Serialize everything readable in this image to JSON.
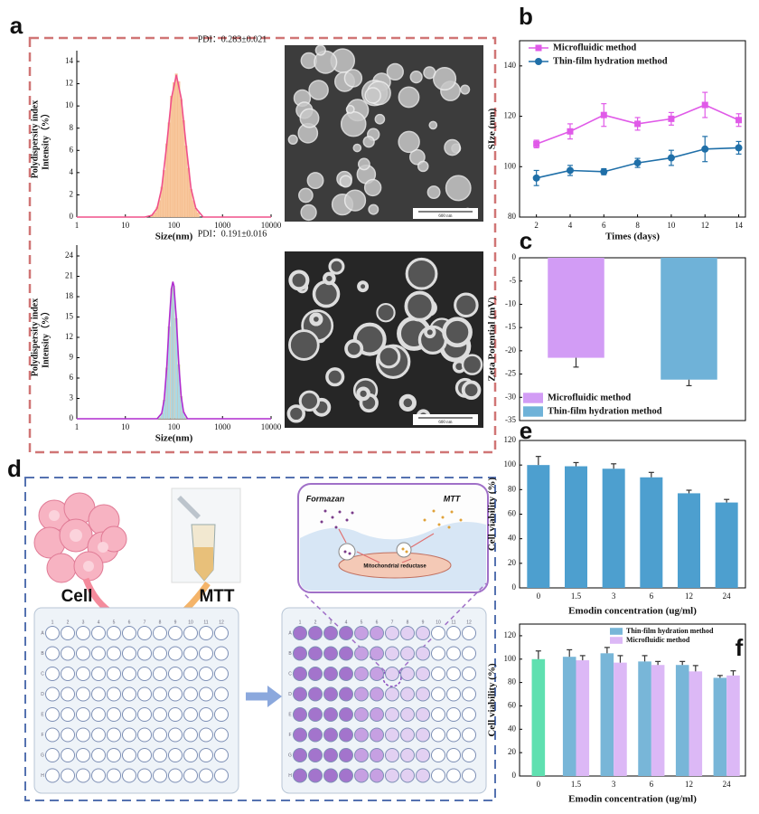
{
  "panels": {
    "a": "a",
    "b": "b",
    "c": "c",
    "d": "d",
    "e": "e",
    "f": "f"
  },
  "images": {
    "scale_bar": "600 nm"
  },
  "diagram": {
    "cell": "Cell",
    "mtt": "MTT",
    "formazan": "Formazan",
    "mtt_bubble": "MTT",
    "mitochondria": "Mitochondrial reductase",
    "plate_columns": [
      "1",
      "2",
      "3",
      "4",
      "5",
      "6",
      "7",
      "8",
      "9",
      "10",
      "11",
      "12"
    ],
    "plate_rows": [
      "A",
      "B",
      "C",
      "D",
      "E",
      "F",
      "G",
      "H"
    ]
  },
  "chart_data": [
    {
      "type": "line",
      "xscale": "log",
      "xlim": [
        1,
        10000
      ],
      "xticks": [
        1,
        10,
        100,
        1000,
        10000
      ],
      "ylim": [
        0,
        14
      ],
      "yticks": [
        0,
        2,
        4,
        6,
        8,
        10,
        12,
        14
      ],
      "ylabel": [
        "Polydispersity index",
        "Intensity（%）"
      ],
      "xlabel": "Size(nm)",
      "annotation": "PDI：0.283±0.021",
      "series": [
        {
          "kind": "bar",
          "color": "#f8c79c",
          "x": [
            35,
            40,
            45,
            50,
            56,
            63,
            71,
            79,
            89,
            100,
            112,
            126,
            141,
            158,
            178,
            200,
            224,
            251,
            282,
            316
          ],
          "values": [
            0.2,
            0.4,
            0.9,
            1.5,
            2.7,
            4.2,
            6.6,
            8.5,
            10.9,
            12.1,
            12.9,
            12.2,
            10.6,
            8.7,
            6.4,
            4.4,
            2.5,
            1.5,
            0.8,
            0.4
          ]
        },
        {
          "kind": "line",
          "color": "#f0508a",
          "x": [
            1,
            25,
            35,
            45,
            56,
            71,
            89,
            112,
            141,
            178,
            224,
            282,
            400,
            10000
          ],
          "values": [
            0,
            0,
            0.15,
            0.8,
            2.6,
            6.5,
            10.7,
            12.8,
            10.7,
            6.5,
            2.6,
            0.8,
            0,
            0
          ]
        }
      ]
    },
    {
      "type": "line",
      "xscale": "log",
      "xlim": [
        1,
        10000
      ],
      "xticks": [
        1,
        10,
        100,
        1000,
        10000
      ],
      "ylim": [
        0,
        24
      ],
      "yticks": [
        0,
        3,
        6,
        9,
        12,
        15,
        18,
        21,
        24
      ],
      "ylabel": [
        "Polydispersity index",
        "Intensity（%）"
      ],
      "xlabel": "Size(nm)",
      "annotation": "PDI：0.191±0.016",
      "series": [
        {
          "kind": "bar",
          "color": "#a9d9e6",
          "x": [
            50,
            56,
            63,
            71,
            79,
            89,
            95,
            100,
            112,
            126,
            141,
            158,
            178
          ],
          "values": [
            0.2,
            0.8,
            2.8,
            7.5,
            13.6,
            19.2,
            20.2,
            19.6,
            14.8,
            8,
            3.3,
            1,
            0.2
          ]
        },
        {
          "kind": "line",
          "color": "#b02ccf",
          "x": [
            1,
            45,
            56,
            63,
            71,
            79,
            89,
            95,
            100,
            112,
            126,
            141,
            158,
            190,
            10000
          ],
          "values": [
            0,
            0,
            0.8,
            2.8,
            7.5,
            13.6,
            19.2,
            20.2,
            19.6,
            14.8,
            8,
            3.3,
            1,
            0,
            0
          ]
        }
      ]
    },
    {
      "type": "line",
      "xlim": [
        1,
        14.4
      ],
      "xticks": [
        2,
        4,
        6,
        8,
        10,
        12,
        14
      ],
      "ylim": [
        80,
        150
      ],
      "yticks": [
        80,
        100,
        120,
        140
      ],
      "ylabel": "SIze (nm)",
      "xlabel": "Times (days)",
      "legend": "upper left",
      "series": [
        {
          "name": "Microfluidic method",
          "kind": "line",
          "marker": "square",
          "color": "#e05ae8",
          "x": [
            2,
            4,
            6,
            8,
            10,
            12,
            14
          ],
          "values": [
            109,
            114,
            120.5,
            117,
            119,
            124.5,
            118.5
          ],
          "errors": [
            1.5,
            3,
            4.5,
            2.5,
            2.5,
            5,
            2.5
          ]
        },
        {
          "name": "Thin-film hydration method",
          "kind": "line",
          "marker": "circle",
          "color": "#1f6fa8",
          "x": [
            2,
            4,
            6,
            8,
            10,
            12,
            14
          ],
          "values": [
            95.5,
            98.5,
            98,
            101.5,
            103.5,
            107,
            107.5
          ],
          "errors": [
            3,
            2,
            1.2,
            1.8,
            3,
            5,
            2.5
          ]
        }
      ]
    },
    {
      "type": "bar",
      "ylim": [
        -35,
        0
      ],
      "yticks": [
        0,
        -5,
        -10,
        -15,
        -20,
        -25,
        -30,
        -35
      ],
      "ylabel": "Zeta Potential (mV)",
      "legend": "lower left",
      "series": [
        {
          "name": "Microfluidic method",
          "color": "#d29cf5",
          "values": [
            -21.5
          ],
          "errors": [
            2
          ]
        },
        {
          "name": "Thin-film hydration method",
          "color": "#6fb2d8",
          "values": [
            -26.2
          ],
          "errors": [
            1.3
          ]
        }
      ]
    },
    {
      "type": "bar",
      "categories": [
        "0",
        "1.5",
        "3",
        "6",
        "12",
        "24"
      ],
      "ylim": [
        0,
        120
      ],
      "yticks": [
        0,
        20,
        40,
        60,
        80,
        100,
        120
      ],
      "ylabel": "Cell viability (%)",
      "xlabel": "Emodin concentration (ug/ml)",
      "series": [
        {
          "color": "#4d9fcf",
          "values": [
            100,
            99,
            97,
            90,
            77,
            69.5
          ],
          "errors": [
            7,
            3,
            4,
            4,
            2.5,
            2.5
          ]
        }
      ]
    },
    {
      "type": "bar",
      "categories": [
        "0",
        "1.5",
        "3",
        "6",
        "12",
        "24"
      ],
      "ylim": [
        0,
        130
      ],
      "yticks": [
        0,
        20,
        40,
        60,
        80,
        100,
        120
      ],
      "ylabel": "Cell viability (%)",
      "xlabel": "Emodin concentration (ug/ml)",
      "legend": "upper right",
      "series": [
        {
          "color": "#5fe0b0",
          "values": [
            100,
            null,
            null,
            null,
            null,
            null
          ],
          "errors": [
            7,
            null,
            null,
            null,
            null,
            null
          ]
        },
        {
          "name": "Thin-film hydration method",
          "color": "#78b6d8",
          "values": [
            null,
            102,
            105,
            98,
            95,
            84
          ],
          "errors": [
            null,
            6,
            5,
            5,
            3,
            2
          ]
        },
        {
          "name": "Microfluidic method",
          "color": "#dcb8f6",
          "values": [
            null,
            99,
            97,
            95,
            89.5,
            86
          ],
          "errors": [
            null,
            4,
            6,
            3,
            5,
            4
          ]
        }
      ]
    }
  ]
}
